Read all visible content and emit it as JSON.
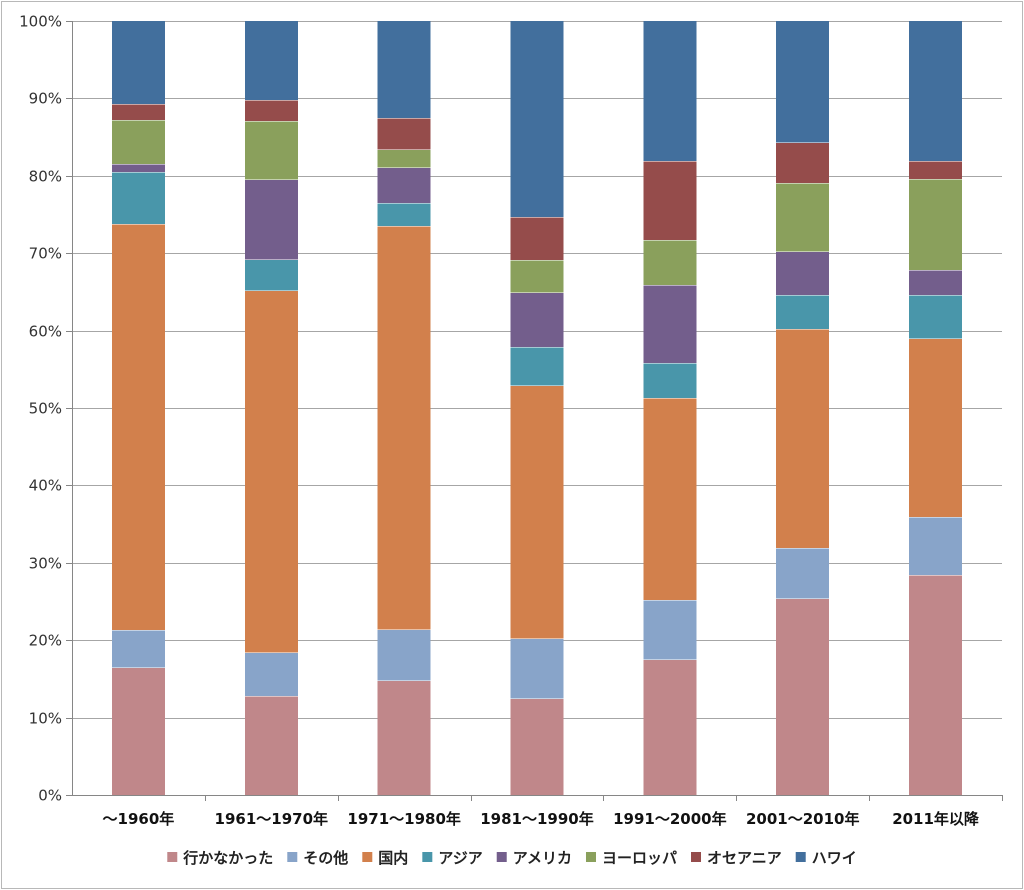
{
  "chart_data": {
    "type": "bar",
    "stacked": true,
    "percent": true,
    "categories": [
      "～1960年",
      "1961～1970年",
      "1971～1980年",
      "1981～1990年",
      "1991～2000年",
      "2001～2010年",
      "2011年以降"
    ],
    "series": [
      {
        "name": "行かなかった",
        "color": "#c0878a",
        "values": [
          16.5,
          12.8,
          14.8,
          12.5,
          17.5,
          25.4,
          28.4
        ]
      },
      {
        "name": "その他",
        "color": "#88a4c9",
        "values": [
          4.8,
          5.6,
          6.6,
          7.7,
          7.7,
          6.5,
          7.5
        ]
      },
      {
        "name": "国内",
        "color": "#d2804c",
        "values": [
          52.5,
          46.8,
          52.1,
          32.7,
          26.1,
          28.3,
          23.1
        ]
      },
      {
        "name": "アジア",
        "color": "#4996aa",
        "values": [
          6.7,
          4.0,
          3.0,
          5.0,
          4.5,
          4.4,
          5.6
        ]
      },
      {
        "name": "アメリカ",
        "color": "#735e8c",
        "values": [
          1.0,
          10.3,
          4.6,
          7.0,
          10.1,
          5.6,
          3.2
        ]
      },
      {
        "name": "ヨーロッパ",
        "color": "#8aa05c",
        "values": [
          5.7,
          7.6,
          2.3,
          4.2,
          5.8,
          8.9,
          11.8
        ]
      },
      {
        "name": "オセアニア",
        "color": "#954c4b",
        "values": [
          2.1,
          2.7,
          4.1,
          5.6,
          10.2,
          5.2,
          2.3
        ]
      },
      {
        "name": "ハワイ",
        "color": "#426f9d",
        "values": [
          10.7,
          10.2,
          12.5,
          25.3,
          18.1,
          15.7,
          18.1
        ]
      }
    ],
    "ylim": [
      0,
      100
    ],
    "yticks": [
      "0%",
      "10%",
      "20%",
      "30%",
      "40%",
      "50%",
      "60%",
      "70%",
      "80%",
      "90%",
      "100%"
    ],
    "grid": true,
    "legend": "bottom",
    "title": "",
    "xlabel": "",
    "ylabel": ""
  }
}
